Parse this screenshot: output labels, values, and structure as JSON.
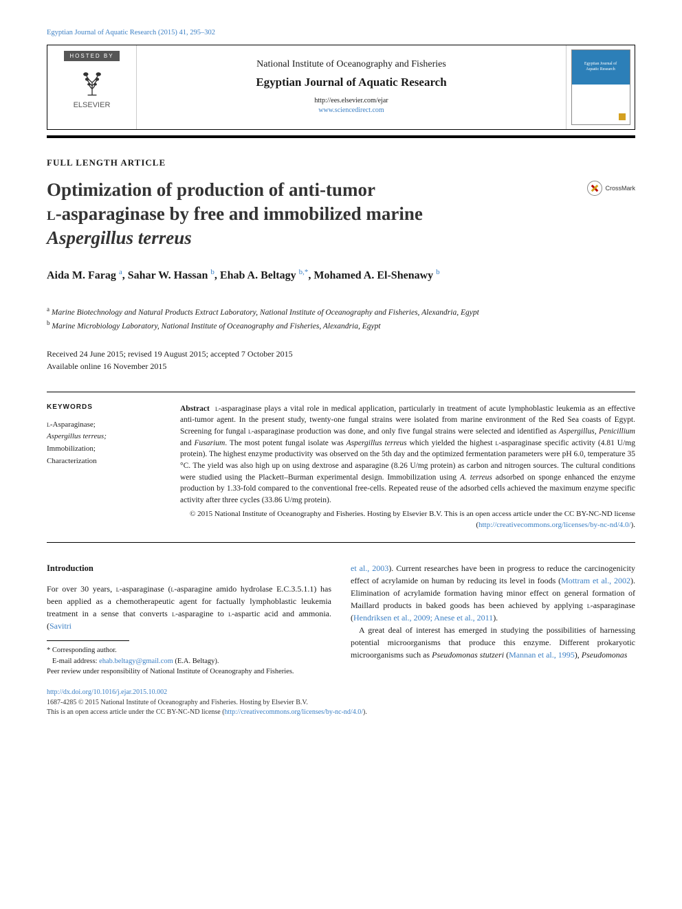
{
  "colors": {
    "link": "#3b7fc4",
    "rule": "#000000",
    "crossmark_red": "#b00000",
    "crossmark_yellow": "#d4a020",
    "cover_blue": "#2c7fb8"
  },
  "running_header": "Egyptian Journal of Aquatic Research (2015) 41, 295–302",
  "masthead": {
    "hosted_by_label": "HOSTED BY",
    "publisher_name": "ELSEVIER",
    "institute": "National Institute of Oceanography and Fisheries",
    "journal": "Egyptian Journal of Aquatic Research",
    "url_plain": "http://ees.elsevier.com/ejar",
    "url_link": "www.sciencedirect.com",
    "cover_text_line1": "Egyptian Journal of",
    "cover_text_line2": "Aquatic Research"
  },
  "article_type": "FULL LENGTH ARTICLE",
  "title": {
    "line1": "Optimization of production of anti-tumor",
    "line2_sc": "l",
    "line2_rest": "-asparaginase by free and immobilized marine",
    "line3_italic": "Aspergillus terreus"
  },
  "crossmark_label": "CrossMark",
  "authors": [
    {
      "name": "Aida M. Farag",
      "aff": "a"
    },
    {
      "name": "Sahar W. Hassan",
      "aff": "b"
    },
    {
      "name": "Ehab A. Beltagy",
      "aff": "b,*"
    },
    {
      "name": "Mohamed A. El-Shenawy",
      "aff": "b"
    }
  ],
  "affiliations": [
    {
      "marker": "a",
      "text": "Marine Biotechnology and Natural Products Extract Laboratory, National Institute of Oceanography and Fisheries, Alexandria, Egypt"
    },
    {
      "marker": "b",
      "text": "Marine Microbiology Laboratory, National Institute of Oceanography and Fisheries, Alexandria, Egypt"
    }
  ],
  "dates": {
    "received_revised_accepted": "Received 24 June 2015; revised 19 August 2015; accepted 7 October 2015",
    "online": "Available online 16 November 2015"
  },
  "keywords": {
    "heading": "KEYWORDS",
    "items": [
      "L-Asparaginase;",
      "Aspergillus terreus;",
      "Immobilization;",
      "Characterization"
    ]
  },
  "abstract": {
    "label": "Abstract",
    "text": "L-asparaginase plays a vital role in medical application, particularly in treatment of acute lymphoblastic leukemia as an effective anti-tumor agent. In the present study, twenty-one fungal strains were isolated from marine environment of the Red Sea coasts of Egypt. Screening for fungal L-asparaginase production was done, and only five fungal strains were selected and identified as Aspergillus, Penicillium and Fusarium. The most potent fungal isolate was Aspergillus terreus which yielded the highest L-asparaginase specific activity (4.81 U/mg protein). The highest enzyme productivity was observed on the 5th day and the optimized fermentation parameters were pH 6.0, temperature 35 °C. The yield was also high up on using dextrose and asparagine (8.26 U/mg protein) as carbon and nitrogen sources. The cultural conditions were studied using the Plackett–Burman experimental design. Immobilization using A. terreus adsorbed on sponge enhanced the enzyme production by 1.33-fold compared to the conventional free-cells. Repeated reuse of the adsorbed cells achieved the maximum enzyme specific activity after three cycles (33.86 U/mg protein).",
    "copyright": "© 2015 National Institute of Oceanography and Fisheries. Hosting by Elsevier B.V. This is an open access article under the CC BY-NC-ND license (",
    "license_url": "http://creativecommons.org/licenses/by-nc-nd/4.0/",
    "copyright_close": ")."
  },
  "body": {
    "section_heading": "Introduction",
    "col1_para": "For over 30 years, L-asparaginase (L-asparagine amido hydrolase E.C.3.5.1.1) has been applied as a chemotherapeutic agent for factually lymphoblastic leukemia treatment in a sense that converts L-asparagine to L-aspartic acid and ammonia. (",
    "col1_cite": "Savitri",
    "col2_cite_cont": "et al., 2003",
    "col2_para1": "). Current researches have been in progress to reduce the carcinogenicity effect of acrylamide on human by reducing its level in foods (",
    "col2_cite2": "Mottram et al., 2002",
    "col2_para2": "). Elimination of acrylamide formation having minor effect on general formation of Maillard products in baked goods has been achieved by applying L-asparaginase (",
    "col2_cite3": "Hendriksen et al., 2009; Anese et al., 2011",
    "col2_para3": ").",
    "col2_para4_start": "A great deal of interest has emerged in studying the possibilities of harnessing potential microorganisms that produce this enzyme. Different prokaryotic microorganisms such as ",
    "col2_para4_italic": "Pseudomonas stutzeri",
    "col2_para4_mid": " (",
    "col2_cite4": "Mannan et al., 1995",
    "col2_para4_end": "), ",
    "col2_para4_tail": "Pseudomonas"
  },
  "footnotes": {
    "corr": "* Corresponding author.",
    "email_label": "E-mail address: ",
    "email": "ehab.beltagy@gmail.com",
    "email_author": " (E.A. Beltagy).",
    "peer": "Peer review under responsibility of National Institute of Oceanography and Fisheries."
  },
  "footer": {
    "doi": "http://dx.doi.org/10.1016/j.ejar.2015.10.002",
    "issn_line": "1687-4285 © 2015 National Institute of Oceanography and Fisheries. Hosting by Elsevier B.V.",
    "oa_line": "This is an open access article under the CC BY-NC-ND license (",
    "oa_url": "http://creativecommons.org/licenses/by-nc-nd/4.0/",
    "oa_close": ")."
  }
}
